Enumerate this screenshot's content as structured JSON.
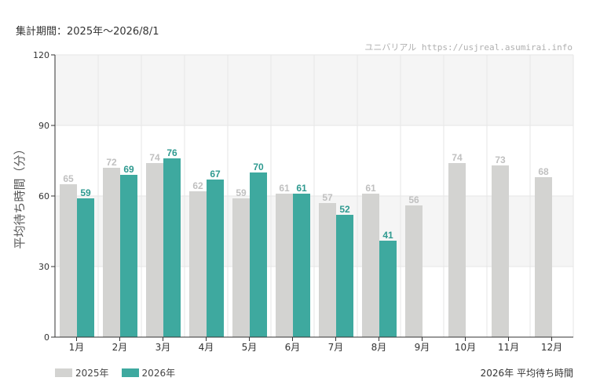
{
  "header": {
    "period": "集計期間：2025年～2026/8/1",
    "credit": "ユニバリアル  https://usjreal.asumirai.info"
  },
  "colors": {
    "series_2025": "#d3d3d1",
    "series_2026": "#3ea99f",
    "label_2025": "#c0c0c0",
    "label_2026": "#2f9a90",
    "band": "#f5f5f5",
    "grid": "#e6e6e6",
    "axis": "#333333"
  },
  "chart_data": {
    "type": "bar",
    "categories": [
      "1月",
      "2月",
      "3月",
      "4月",
      "5月",
      "6月",
      "7月",
      "8月",
      "9月",
      "10月",
      "11月",
      "12月"
    ],
    "series": [
      {
        "name": "2025年",
        "values": [
          65,
          72,
          74,
          62,
          59,
          61,
          57,
          61,
          56,
          74,
          73,
          68
        ]
      },
      {
        "name": "2026年",
        "values": [
          59,
          69,
          76,
          67,
          70,
          61,
          52,
          41,
          null,
          null,
          null,
          null
        ]
      }
    ],
    "ylabel": "平均待ち時間（分）",
    "ylim": [
      0,
      120
    ],
    "yticks": [
      0,
      30,
      60,
      90,
      120
    ],
    "grid": true,
    "legend_position": "bottom-left",
    "caption": "2026年 平均待ち時間"
  }
}
